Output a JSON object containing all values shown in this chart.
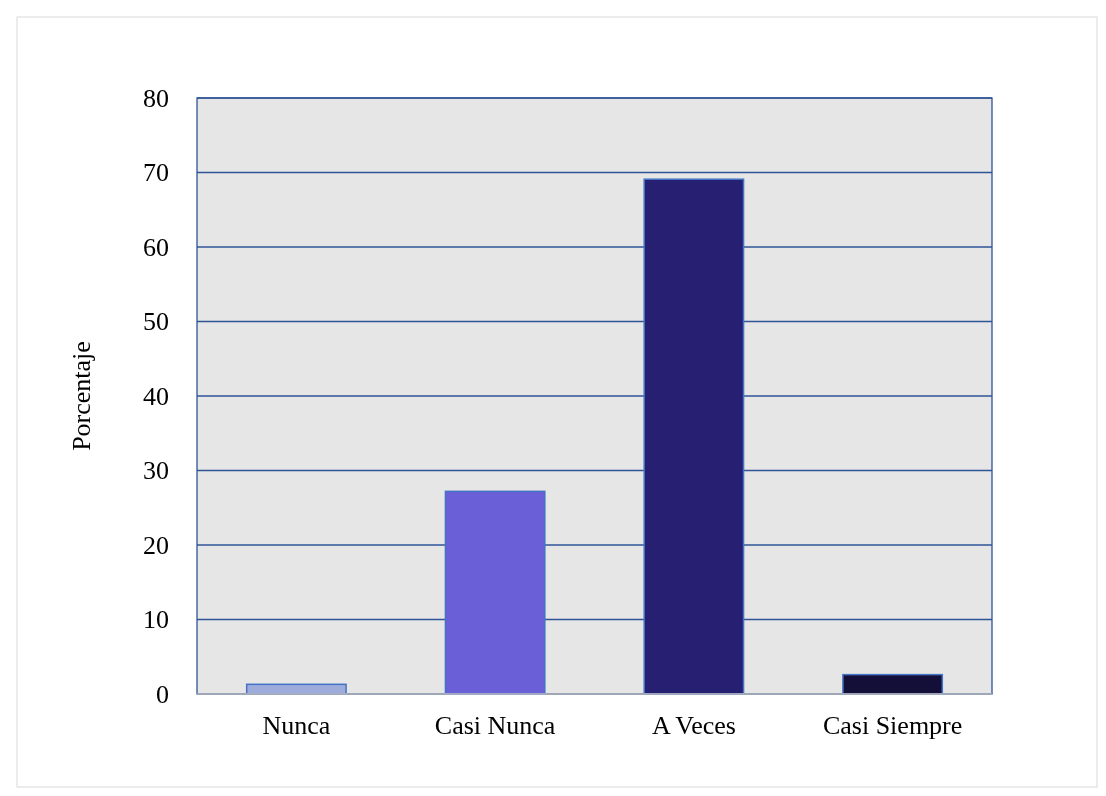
{
  "chart_data": {
    "type": "bar",
    "ylabel": "Porcentaje",
    "categories": [
      "Nunca",
      "Casi Nunca",
      "A Veces",
      "Casi Siempre"
    ],
    "values": [
      1.3,
      27.2,
      69.1,
      2.6
    ],
    "colors": [
      "#9eacdc",
      "#6a5fd6",
      "#271f72",
      "#140f38"
    ],
    "ylim": [
      0,
      80
    ],
    "yticks": [
      0,
      10,
      20,
      30,
      40,
      50,
      60,
      70,
      80
    ],
    "grid": "y"
  }
}
